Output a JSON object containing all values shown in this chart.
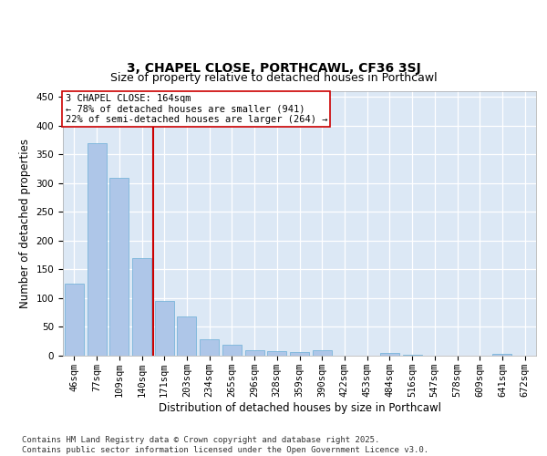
{
  "title_line1": "3, CHAPEL CLOSE, PORTHCAWL, CF36 3SJ",
  "title_line2": "Size of property relative to detached houses in Porthcawl",
  "xlabel": "Distribution of detached houses by size in Porthcawl",
  "ylabel": "Number of detached properties",
  "categories": [
    "46sqm",
    "77sqm",
    "109sqm",
    "140sqm",
    "171sqm",
    "203sqm",
    "234sqm",
    "265sqm",
    "296sqm",
    "328sqm",
    "359sqm",
    "390sqm",
    "422sqm",
    "453sqm",
    "484sqm",
    "516sqm",
    "547sqm",
    "578sqm",
    "609sqm",
    "641sqm",
    "672sqm"
  ],
  "values": [
    126,
    370,
    310,
    170,
    95,
    68,
    28,
    19,
    10,
    8,
    7,
    9,
    0,
    0,
    4,
    2,
    0,
    0,
    0,
    3,
    0
  ],
  "bar_color": "#aec6e8",
  "bar_edge_color": "#6aaed6",
  "vline_x_index": 3.5,
  "vline_color": "#cc0000",
  "annotation_text": "3 CHAPEL CLOSE: 164sqm\n← 78% of detached houses are smaller (941)\n22% of semi-detached houses are larger (264) →",
  "annotation_box_color": "#ffffff",
  "annotation_box_edge_color": "#cc0000",
  "ylim": [
    0,
    460
  ],
  "yticks": [
    0,
    50,
    100,
    150,
    200,
    250,
    300,
    350,
    400,
    450
  ],
  "bg_color": "#dce8f5",
  "footer_text": "Contains HM Land Registry data © Crown copyright and database right 2025.\nContains public sector information licensed under the Open Government Licence v3.0.",
  "title_fontsize": 10,
  "subtitle_fontsize": 9,
  "axis_label_fontsize": 8.5,
  "tick_fontsize": 7.5,
  "annotation_fontsize": 7.5,
  "footer_fontsize": 6.5
}
